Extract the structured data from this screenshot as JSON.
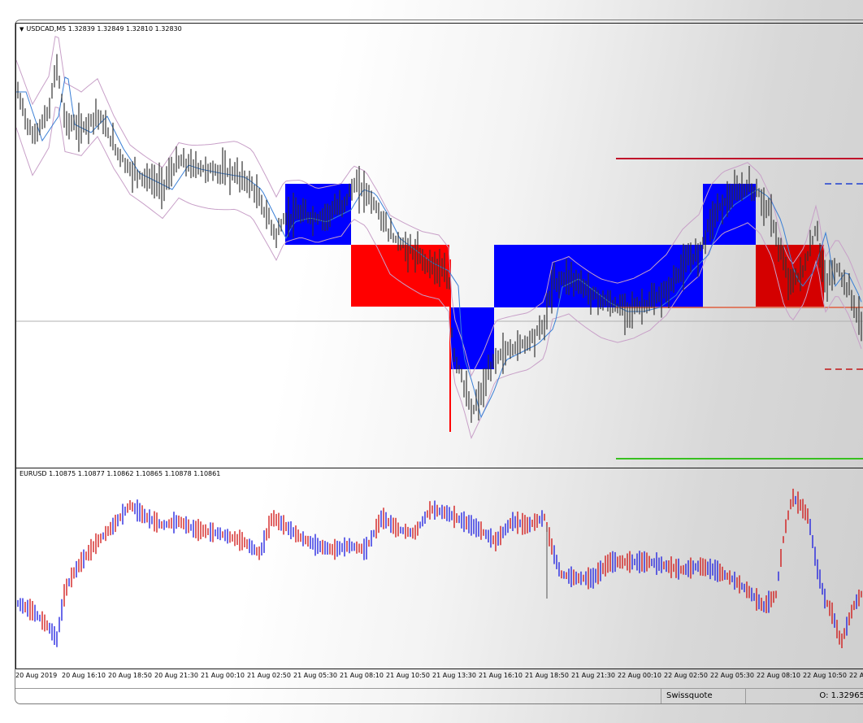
{
  "main_chart": {
    "label": "USDCAD,M5  1.32839 1.32849 1.32810 1.32830",
    "colors": {
      "bull_box": "#0000ff",
      "bear_box": "#ff0000",
      "bear_box_dark": "#d40000",
      "candles": "#333333",
      "ma": "#3a7fd6",
      "bands": "#c8a0c8",
      "upper_line": "#c0102a",
      "lower_line": "#38c020",
      "mid_line": "#e06040",
      "dash_blue": "#2040d0",
      "dash_red": "#c01818"
    }
  },
  "sub_chart": {
    "label": "EURUSD  1.10875 1.10877 1.10862 1.10865 1.10878 1.10861",
    "colors": {
      "up": "#1a1adf",
      "down": "#d01010"
    }
  },
  "time_axis": [
    "20 Aug 2019",
    "20 Aug 16:10",
    "20 Aug 18:50",
    "20 Aug 21:30",
    "21 Aug 00:10",
    "21 Aug 02:50",
    "21 Aug 05:30",
    "21 Aug 08:10",
    "21 Aug 10:50",
    "21 Aug 13:30",
    "21 Aug 16:10",
    "21 Aug 18:50",
    "21 Aug 21:30",
    "22 Aug 00:10",
    "22 Aug 02:50",
    "22 Aug 05:30",
    "22 Aug 08:10",
    "22 Aug 10:50",
    "22 A"
  ],
  "status": {
    "broker": "Swissquote",
    "ohlc": "O: 1.32965"
  }
}
